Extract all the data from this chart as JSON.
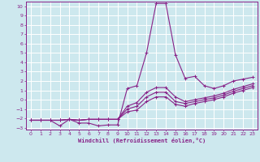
{
  "xlabel": "Windchill (Refroidissement éolien,°C)",
  "background_color": "#cde8ee",
  "grid_color": "#ffffff",
  "line_color": "#882288",
  "spine_color": "#882288",
  "xlim": [
    -0.5,
    23.5
  ],
  "ylim": [
    -3.2,
    10.5
  ],
  "xticks": [
    0,
    1,
    2,
    3,
    4,
    5,
    6,
    7,
    8,
    9,
    10,
    11,
    12,
    13,
    14,
    15,
    16,
    17,
    18,
    19,
    20,
    21,
    22,
    23
  ],
  "yticks": [
    -3,
    -2,
    -1,
    0,
    1,
    2,
    3,
    4,
    5,
    6,
    7,
    8,
    9,
    10
  ],
  "lines": [
    {
      "x": [
        0,
        1,
        2,
        3,
        4,
        5,
        6,
        7,
        8,
        9,
        10,
        11,
        12,
        13,
        14,
        15,
        16,
        17,
        18,
        19,
        20,
        21,
        22,
        23
      ],
      "y": [
        -2.2,
        -2.2,
        -2.2,
        -2.8,
        -2.1,
        -2.5,
        -2.5,
        -2.8,
        -2.7,
        -2.7,
        1.2,
        1.5,
        5.0,
        10.3,
        10.3,
        4.8,
        2.3,
        2.5,
        1.5,
        1.2,
        1.5,
        2.0,
        2.2,
        2.4
      ]
    },
    {
      "x": [
        0,
        1,
        2,
        3,
        4,
        5,
        6,
        7,
        8,
        9,
        10,
        11,
        12,
        13,
        14,
        15,
        16,
        17,
        18,
        19,
        20,
        21,
        22,
        23
      ],
      "y": [
        -2.2,
        -2.2,
        -2.2,
        -2.2,
        -2.1,
        -2.2,
        -2.1,
        -2.1,
        -2.1,
        -2.1,
        -0.7,
        -0.3,
        0.8,
        1.3,
        1.3,
        0.3,
        -0.2,
        0.0,
        0.2,
        0.4,
        0.7,
        1.1,
        1.4,
        1.7
      ]
    },
    {
      "x": [
        0,
        1,
        2,
        3,
        4,
        5,
        6,
        7,
        8,
        9,
        10,
        11,
        12,
        13,
        14,
        15,
        16,
        17,
        18,
        19,
        20,
        21,
        22,
        23
      ],
      "y": [
        -2.2,
        -2.2,
        -2.2,
        -2.2,
        -2.1,
        -2.2,
        -2.1,
        -2.1,
        -2.1,
        -2.1,
        -1.0,
        -0.7,
        0.3,
        0.8,
        0.8,
        -0.2,
        -0.4,
        -0.2,
        0.0,
        0.2,
        0.5,
        0.9,
        1.2,
        1.5
      ]
    },
    {
      "x": [
        0,
        1,
        2,
        3,
        4,
        5,
        6,
        7,
        8,
        9,
        10,
        11,
        12,
        13,
        14,
        15,
        16,
        17,
        18,
        19,
        20,
        21,
        22,
        23
      ],
      "y": [
        -2.2,
        -2.2,
        -2.2,
        -2.2,
        -2.1,
        -2.2,
        -2.1,
        -2.1,
        -2.1,
        -2.1,
        -1.3,
        -1.1,
        -0.2,
        0.3,
        0.3,
        -0.5,
        -0.7,
        -0.4,
        -0.2,
        0.0,
        0.3,
        0.7,
        1.0,
        1.3
      ]
    }
  ]
}
